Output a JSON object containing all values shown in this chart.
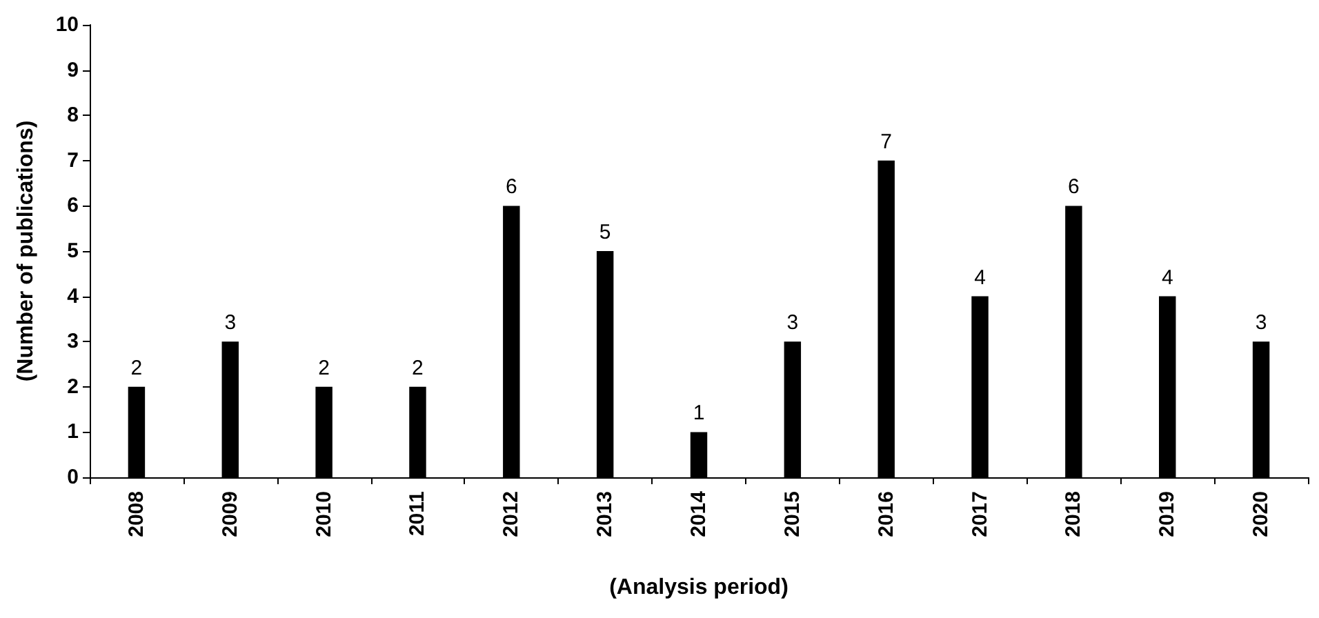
{
  "chart_data": {
    "type": "bar",
    "xlabel": "(Analysis period)",
    "ylabel": "(Number of publications)",
    "categories": [
      "2008",
      "2009",
      "2010",
      "2011",
      "2012",
      "2013",
      "2014",
      "2015",
      "2016",
      "2017",
      "2018",
      "2019",
      "2020"
    ],
    "values": [
      2,
      3,
      2,
      2,
      6,
      5,
      1,
      3,
      7,
      4,
      6,
      4,
      3
    ],
    "color": "#000000",
    "ylim": [
      0,
      10
    ],
    "yticks": [
      0,
      1,
      2,
      3,
      4,
      5,
      6,
      7,
      8,
      9,
      10
    ],
    "grid": false,
    "data_labels": true
  }
}
